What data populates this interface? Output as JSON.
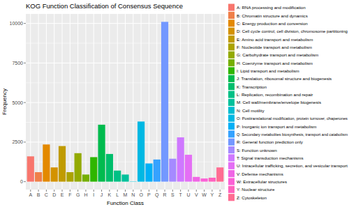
{
  "chart_data": {
    "type": "bar",
    "title": "KOG Function Classification of Consensus Sequence",
    "x_label": "Function Class",
    "y_label": "Frequency",
    "categories": [
      "A",
      "B",
      "C",
      "D",
      "E",
      "F",
      "G",
      "H",
      "I",
      "J",
      "K",
      "L",
      "M",
      "N",
      "O",
      "P",
      "Q",
      "R",
      "S",
      "T",
      "U",
      "V",
      "W",
      "Y",
      "Z"
    ],
    "values": [
      1600,
      600,
      2350,
      900,
      2250,
      600,
      1800,
      450,
      1550,
      3600,
      1750,
      700,
      450,
      20,
      3800,
      1150,
      1400,
      10100,
      1450,
      2800,
      1700,
      300,
      200,
      250,
      900
    ],
    "colors": [
      "#F8766D",
      "#EF7F49",
      "#E38900",
      "#D39200",
      "#C09B00",
      "#ABA300",
      "#93AA00",
      "#75AF00",
      "#2FB600",
      "#00BB4E",
      "#00BE6C",
      "#00C085",
      "#00C19C",
      "#00BDD0",
      "#00B8E3",
      "#00B0F6",
      "#35A2FF",
      "#7398FF",
      "#A58AFF",
      "#CF78FF",
      "#E46FF5",
      "#F066E5",
      "#FB61D6",
      "#FF63BE",
      "#FF6C92"
    ],
    "legend_labels": [
      "A: RNA processing and modification",
      "B: Chromatin structure and dynamics",
      "C: Energy production and conversion",
      "D: Cell cycle control, cell division, chromosome partitioning",
      "E: Amino acid transport and metabolism",
      "F: Nucleotide transport and metabolism",
      "G: Carbohydrate transport and metabolism",
      "H: Coenzyme transport and metabolism",
      "I: Lipid transport and metabolism",
      "J: Translation, ribosomal structure and biogenesis",
      "K: Transcription",
      "L: Replication, recombination and repair",
      "M: Cell wall/membrane/envelope biogenesis",
      "N: Cell motility",
      "O: Posttranslational modification, protein turnover, chaperones",
      "P: Inorganic ion transport and metabolism",
      "Q: Secondary metabolites biosynthesis, transport and catabolism",
      "R: General function prediction only",
      "S: Function unknown",
      "T: Signal transduction mechanisms",
      "U: Intracellular trafficking, secretion, and vesicular transport",
      "V: Defense mechanisms",
      "W: Extracellular structures",
      "Y: Nuclear structure",
      "Z: Cytoskeleton"
    ],
    "ylim": [
      -500,
      10600
    ],
    "yticks": [
      0,
      2500,
      5000,
      7500,
      10000
    ],
    "grid": true,
    "legend": "right"
  }
}
